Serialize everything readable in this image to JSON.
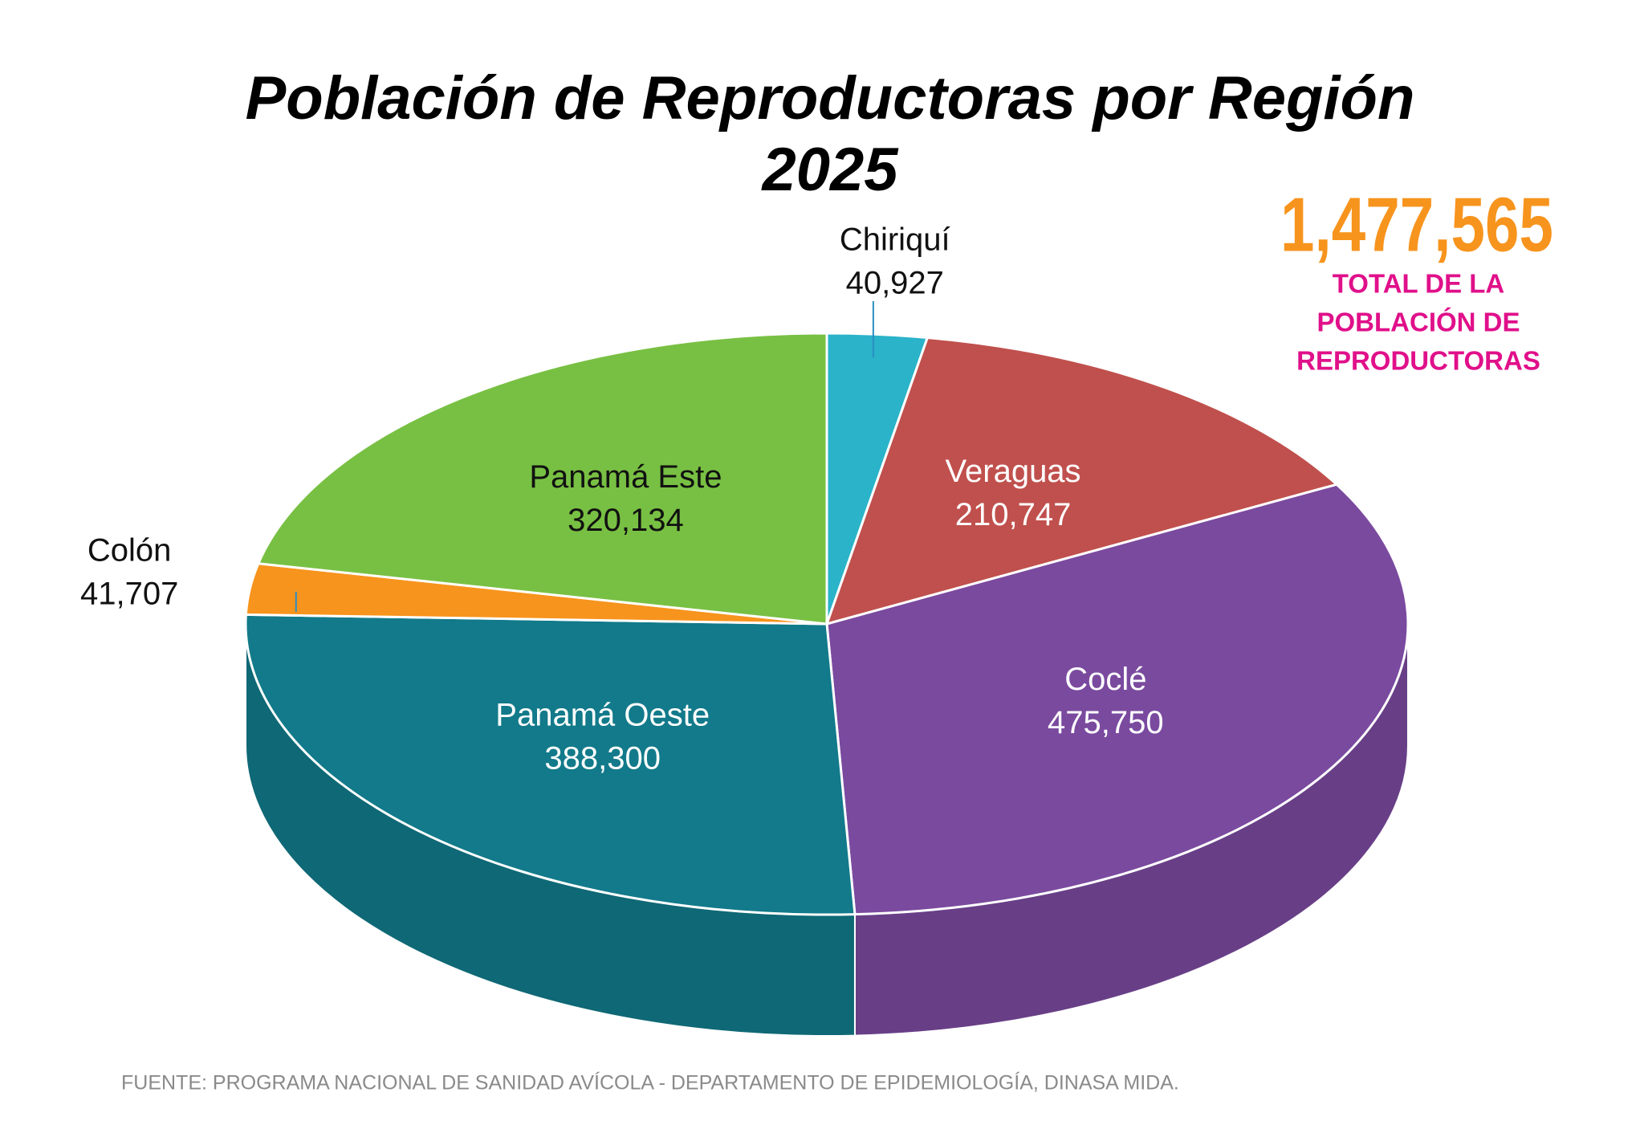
{
  "chart_data": {
    "type": "pie",
    "style": "3d",
    "title": "Población de Reproductoras por Región",
    "subtitle": "2025",
    "categories": [
      "Chiriquí",
      "Veraguas",
      "Coclé",
      "Panamá Oeste",
      "Colón",
      "Panamá Este"
    ],
    "values": [
      40927,
      210747,
      475750,
      388300,
      41707,
      320134
    ],
    "value_labels": [
      "40,927",
      "210,747",
      "475,750",
      "388,300",
      "41,707",
      "320,134"
    ],
    "colors": [
      "#2ab3c9",
      "#c0504d",
      "#7a4a9f",
      "#127a8a",
      "#f7941d",
      "#78c043"
    ],
    "total": {
      "value": 1477565,
      "label": "1,477,565"
    },
    "total_caption": [
      "TOTAL DE LA",
      "POBLACIÓN DE",
      "REPRODUCTORAS"
    ],
    "source": "FUENTE: PROGRAMA NACIONAL DE SANIDAD AVÍCOLA -  DEPARTAMENTO DE EPIDEMIOLOGÍA, DINASA MIDA."
  }
}
